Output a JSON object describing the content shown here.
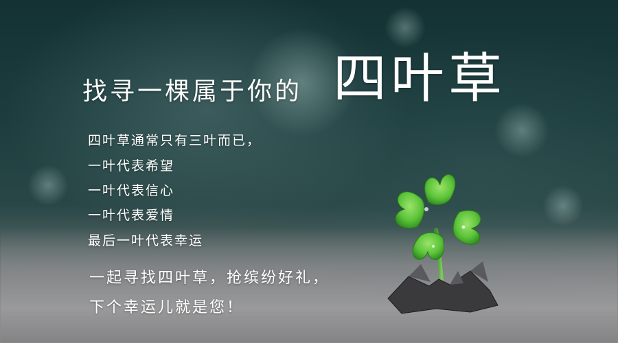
{
  "banner": {
    "title_small": "找寻一棵属于你的",
    "title_big": "四叶草",
    "intro_lines": [
      "四叶草通常只有三叶而已，",
      "一叶代表希望",
      "一叶代表信心",
      "一叶代表爱情",
      "最后一叶代表幸运"
    ],
    "cta_lines": [
      "一起寻找四叶草，抢缤纷好礼，",
      "下个幸运儿就是您！"
    ]
  },
  "image": {
    "subject": "four-leaf-clover",
    "leaf_color": "#5cc43a",
    "background_color": "#143234"
  }
}
